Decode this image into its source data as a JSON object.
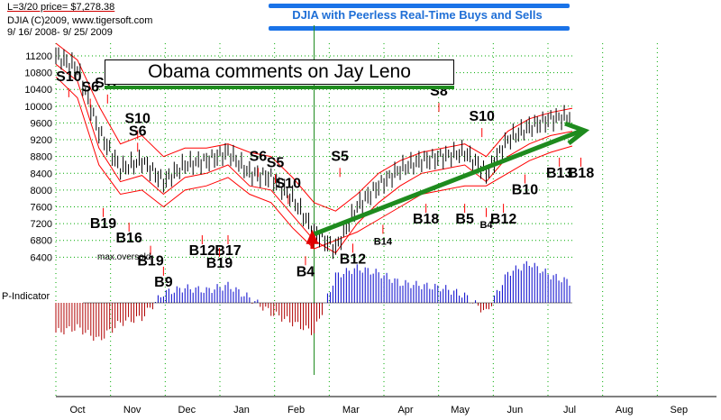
{
  "header": {
    "line1": "L=3/20  price= $7,278.38",
    "line2": "DJIA   (C)2009, www.tigersoft.com",
    "line3": "9/ 16/ 2008- 9/ 25/ 2009"
  },
  "banner": "DJIA with Peerless Real-Time Buys and Sells",
  "annotation": "Obama comments on Jay Leno",
  "colors": {
    "price": "#000000",
    "band": "#ff0000",
    "indicator_positive": "#0000cc",
    "indicator_negative": "#b00000",
    "trend_arrow": "#1e8b1e",
    "banner": "#1a73e8",
    "grid": "#00aa00"
  },
  "chart_data": {
    "type": "line",
    "title": "DJIA with Peerless Real-Time Buys and Sells",
    "ylabel": "DJIA",
    "ylim": [
      6300,
      11500
    ],
    "y_ticks": [
      6400,
      6800,
      7200,
      7600,
      8000,
      8400,
      8800,
      9200,
      9600,
      10000,
      10400,
      10800,
      11200
    ],
    "x_ticks": [
      "Oct",
      "Nov",
      "Dec",
      "Jan",
      "Feb",
      "Mar",
      "Apr",
      "May",
      "Jun",
      "Jul",
      "Aug",
      "Sep"
    ],
    "grid": true,
    "x": [
      0,
      0.5,
      1,
      1.5,
      2,
      2.5,
      3,
      3.5,
      4,
      4.5,
      5,
      5.5,
      6,
      6.5,
      7,
      7.5,
      8,
      8.5,
      9,
      9.5,
      10,
      10.5,
      11,
      11.5,
      12
    ],
    "price": [
      11200,
      10900,
      9400,
      8500,
      8700,
      8200,
      8600,
      8700,
      8900,
      8400,
      8300,
      7800,
      7000,
      6600,
      7600,
      8100,
      8500,
      8700,
      8800,
      8900,
      8400,
      9200,
      9500,
      9700,
      9750
    ],
    "band_upper": [
      11500,
      11100,
      10000,
      9100,
      9300,
      8800,
      9000,
      9000,
      9100,
      8900,
      8800,
      8300,
      7700,
      7500,
      7900,
      8400,
      8700,
      8900,
      9000,
      9100,
      8800,
      9400,
      9700,
      9850,
      9950
    ],
    "band_lower": [
      11000,
      10600,
      9000,
      8200,
      8350,
      7900,
      8300,
      8400,
      8600,
      8100,
      8000,
      7400,
      6800,
      6500,
      7200,
      7700,
      8100,
      8400,
      8500,
      8600,
      8200,
      8800,
      9100,
      9300,
      9400
    ],
    "band_low_extra": [
      10700,
      10200,
      8600,
      7900,
      8000,
      7600,
      8000,
      8100,
      8300,
      7900,
      7700,
      7100,
      6600,
      6800,
      7000,
      7300,
      7600,
      7900,
      8000,
      8100,
      8100,
      8400,
      8700,
      8900,
      9050
    ],
    "p_indicator_label": "P-Indicator",
    "p_indicator": [
      -60,
      -50,
      -75,
      -40,
      -30,
      20,
      30,
      25,
      35,
      10,
      -20,
      -40,
      -60,
      55,
      70,
      60,
      40,
      35,
      30,
      15,
      -20,
      60,
      80,
      55,
      40
    ],
    "trend_arrow": {
      "from": [
        6,
        6950
      ],
      "to": [
        12,
        9200
      ]
    },
    "note_label": "max.oversold",
    "signals": [
      {
        "label": "S10",
        "x": 0.3,
        "y": 10600,
        "kind": "sell"
      },
      {
        "label": "S6",
        "x": 0.8,
        "y": 10350,
        "kind": "sell"
      },
      {
        "label": "S12",
        "x": 1.2,
        "y": 10450,
        "kind": "sell"
      },
      {
        "label": "S10",
        "x": 1.9,
        "y": 9600,
        "kind": "sell"
      },
      {
        "label": "S6",
        "x": 1.9,
        "y": 9300,
        "kind": "sell"
      },
      {
        "label": "S6",
        "x": 4.7,
        "y": 8700,
        "kind": "sell"
      },
      {
        "label": "S5",
        "x": 5.1,
        "y": 8550,
        "kind": "sell"
      },
      {
        "label": "S10",
        "x": 5.4,
        "y": 8050,
        "kind": "sell"
      },
      {
        "label": "S5",
        "x": 6.6,
        "y": 8700,
        "kind": "sell"
      },
      {
        "label": "S8",
        "x": 8.9,
        "y": 10250,
        "kind": "sell"
      },
      {
        "label": "S10",
        "x": 9.9,
        "y": 9650,
        "kind": "sell"
      },
      {
        "label": "B19",
        "x": 1.1,
        "y": 7100,
        "kind": "buy"
      },
      {
        "label": "B16",
        "x": 1.7,
        "y": 6750,
        "kind": "buy"
      },
      {
        "label": "B19",
        "x": 2.2,
        "y": 6200,
        "kind": "buy"
      },
      {
        "label": "B9",
        "x": 2.5,
        "y": 5700,
        "kind": "buy"
      },
      {
        "label": "B12",
        "x": 3.4,
        "y": 6450,
        "kind": "buy"
      },
      {
        "label": "B17",
        "x": 4.0,
        "y": 6450,
        "kind": "buy"
      },
      {
        "label": "B19",
        "x": 3.8,
        "y": 6150,
        "kind": "buy"
      },
      {
        "label": "B4",
        "x": 5.8,
        "y": 5950,
        "kind": "buy"
      },
      {
        "label": "B12",
        "x": 6.9,
        "y": 6250,
        "kind": "buy"
      },
      {
        "label": "B14",
        "x": 7.6,
        "y": 6700,
        "kind": "buy"
      },
      {
        "label": "B18",
        "x": 8.6,
        "y": 7200,
        "kind": "buy"
      },
      {
        "label": "B5",
        "x": 9.5,
        "y": 7200,
        "kind": "buy"
      },
      {
        "label": "B4",
        "x": 10.0,
        "y": 7100,
        "kind": "buy"
      },
      {
        "label": "B12",
        "x": 10.4,
        "y": 7200,
        "kind": "buy"
      },
      {
        "label": "B10",
        "x": 10.9,
        "y": 7900,
        "kind": "buy"
      },
      {
        "label": "B13",
        "x": 11.7,
        "y": 8300,
        "kind": "buy"
      },
      {
        "label": "B18",
        "x": 12.2,
        "y": 8300,
        "kind": "buy"
      }
    ]
  }
}
